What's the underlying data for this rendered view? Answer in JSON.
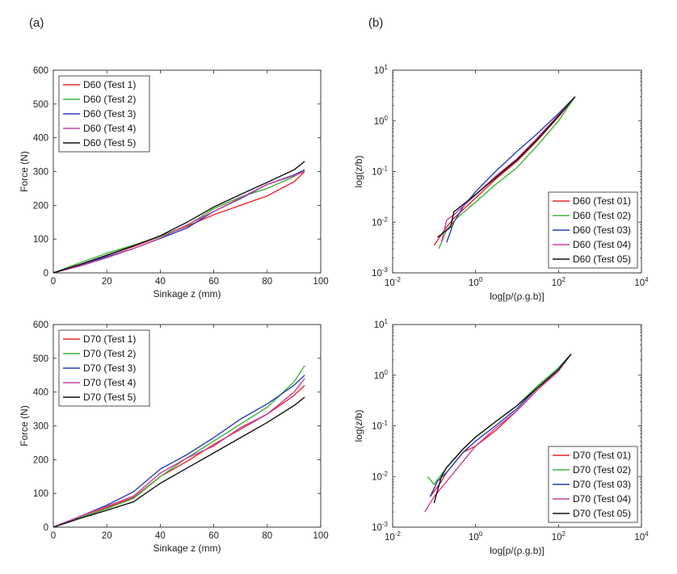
{
  "panels": {
    "a": "(a)",
    "b": "(b)"
  },
  "chart_data": [
    {
      "type": "line",
      "xlabel": "Sinkage z (mm)",
      "ylabel": "Force (N)",
      "xlim": [
        0,
        100
      ],
      "ylim": [
        0,
        600
      ],
      "xticks": [
        0,
        20,
        40,
        60,
        80,
        100
      ],
      "yticks": [
        0,
        100,
        200,
        300,
        400,
        500,
        600
      ],
      "legend_position": "top-left",
      "series": [
        {
          "name": "D60 (Test 1)",
          "color": "#e8262b",
          "x": [
            0,
            10,
            20,
            30,
            40,
            50,
            60,
            70,
            80,
            90,
            94
          ],
          "y": [
            0,
            25,
            52,
            78,
            108,
            138,
            172,
            200,
            228,
            270,
            300
          ]
        },
        {
          "name": "D60 (Test 2)",
          "color": "#3db53a",
          "x": [
            0,
            10,
            20,
            30,
            40,
            50,
            60,
            70,
            80,
            90,
            94
          ],
          "y": [
            0,
            30,
            58,
            82,
            108,
            140,
            190,
            225,
            250,
            285,
            305
          ]
        },
        {
          "name": "D60 (Test 3)",
          "color": "#2b3cb6",
          "x": [
            0,
            10,
            20,
            30,
            40,
            50,
            60,
            70,
            80,
            90,
            94
          ],
          "y": [
            0,
            22,
            48,
            72,
            102,
            133,
            182,
            220,
            262,
            290,
            305
          ]
        },
        {
          "name": "D60 (Test 4)",
          "color": "#c93f9d",
          "x": [
            0,
            10,
            20,
            30,
            40,
            50,
            60,
            70,
            80,
            90,
            94
          ],
          "y": [
            0,
            20,
            45,
            72,
            103,
            142,
            182,
            222,
            262,
            288,
            300
          ]
        },
        {
          "name": "D60 (Test 5)",
          "color": "#111111",
          "x": [
            0,
            10,
            20,
            30,
            40,
            50,
            60,
            70,
            80,
            90,
            94
          ],
          "y": [
            0,
            25,
            52,
            80,
            110,
            150,
            195,
            232,
            268,
            305,
            330
          ]
        }
      ]
    },
    {
      "type": "line",
      "log_x": true,
      "log_y": true,
      "xlabel": "log[p/(ρ.g.b)]",
      "ylabel": "log(z/b)",
      "xlim": [
        0.01,
        10000
      ],
      "ylim": [
        0.001,
        10
      ],
      "x_tick_exponents": [
        -2,
        0,
        2,
        4
      ],
      "y_tick_exponents": [
        -3,
        -2,
        -1,
        0,
        1
      ],
      "legend_position": "bottom-right",
      "series": [
        {
          "name": "D60 (Test 01)",
          "color": "#e8262b",
          "x": [
            0.1,
            0.2,
            0.3,
            1,
            3,
            10,
            30,
            100,
            250
          ],
          "y": [
            0.0035,
            0.008,
            0.012,
            0.03,
            0.07,
            0.16,
            0.4,
            1.2,
            3.0
          ]
        },
        {
          "name": "D60 (Test 02)",
          "color": "#3db53a",
          "x": [
            0.13,
            0.2,
            0.35,
            1,
            3,
            10,
            30,
            100,
            250
          ],
          "y": [
            0.003,
            0.007,
            0.012,
            0.025,
            0.055,
            0.12,
            0.32,
            1.0,
            3.0
          ]
        },
        {
          "name": "D60 (Test 03)",
          "color": "#2b3cb6",
          "x": [
            0.2,
            0.3,
            0.5,
            1,
            3,
            10,
            30,
            100,
            250
          ],
          "y": [
            0.004,
            0.01,
            0.02,
            0.04,
            0.1,
            0.25,
            0.55,
            1.4,
            3.0
          ]
        },
        {
          "name": "D60 (Test 04)",
          "color": "#c93f9d",
          "x": [
            0.15,
            0.2,
            0.3,
            1,
            3,
            10,
            30,
            100,
            250
          ],
          "y": [
            0.004,
            0.011,
            0.014,
            0.035,
            0.08,
            0.18,
            0.45,
            1.3,
            3.0
          ]
        },
        {
          "name": "D60 (Test 05)",
          "color": "#111111",
          "x": [
            0.12,
            0.25,
            0.3,
            1,
            3,
            10,
            30,
            100,
            250
          ],
          "y": [
            0.005,
            0.008,
            0.016,
            0.035,
            0.075,
            0.17,
            0.42,
            1.25,
            3.0
          ]
        }
      ]
    },
    {
      "type": "line",
      "xlabel": "Sinkage z (mm)",
      "ylabel": "Force (N)",
      "xlim": [
        0,
        100
      ],
      "ylim": [
        0,
        600
      ],
      "xticks": [
        0,
        20,
        40,
        60,
        80,
        100
      ],
      "yticks": [
        0,
        100,
        200,
        300,
        400,
        500,
        600
      ],
      "legend_position": "top-left",
      "series": [
        {
          "name": "D70 (Test 1)",
          "color": "#e8262b",
          "x": [
            0,
            10,
            20,
            30,
            40,
            50,
            60,
            70,
            80,
            90,
            94
          ],
          "y": [
            0,
            28,
            58,
            88,
            150,
            195,
            245,
            290,
            335,
            390,
            420
          ]
        },
        {
          "name": "D70 (Test 2)",
          "color": "#3db53a",
          "x": [
            0,
            10,
            20,
            30,
            40,
            50,
            60,
            70,
            80,
            90,
            94
          ],
          "y": [
            0,
            28,
            55,
            85,
            150,
            205,
            255,
            305,
            355,
            430,
            478
          ]
        },
        {
          "name": "D70 (Test 3)",
          "color": "#2b3cb6",
          "x": [
            0,
            10,
            20,
            30,
            40,
            50,
            60,
            70,
            80,
            90,
            94
          ],
          "y": [
            0,
            32,
            65,
            105,
            172,
            215,
            265,
            320,
            365,
            420,
            450
          ]
        },
        {
          "name": "D70 (Test 4)",
          "color": "#c93f9d",
          "x": [
            0,
            10,
            20,
            30,
            40,
            50,
            60,
            70,
            80,
            90,
            94
          ],
          "y": [
            0,
            32,
            62,
            92,
            160,
            205,
            240,
            295,
            335,
            400,
            440
          ]
        },
        {
          "name": "D70 (Test 5)",
          "color": "#111111",
          "x": [
            0,
            10,
            20,
            30,
            40,
            50,
            60,
            70,
            80,
            90,
            94
          ],
          "y": [
            0,
            26,
            50,
            75,
            130,
            175,
            220,
            265,
            310,
            360,
            385
          ]
        }
      ]
    },
    {
      "type": "line",
      "log_x": true,
      "log_y": true,
      "xlabel": "log[p/(ρ.g.b)]",
      "ylabel": "log(z/b)",
      "xlim": [
        0.01,
        10000
      ],
      "ylim": [
        0.001,
        10
      ],
      "x_tick_exponents": [
        -2,
        0,
        2,
        4
      ],
      "y_tick_exponents": [
        -3,
        -2,
        -1,
        0,
        1
      ],
      "legend_position": "bottom-right",
      "series": [
        {
          "name": "D70 (Test 01)",
          "color": "#e8262b",
          "x": [
            0.08,
            0.15,
            0.2,
            0.5,
            1,
            3,
            10,
            30,
            100,
            200
          ],
          "y": [
            0.004,
            0.008,
            0.012,
            0.03,
            0.04,
            0.08,
            0.2,
            0.5,
            1.3,
            2.6
          ]
        },
        {
          "name": "D70 (Test 02)",
          "color": "#3db53a",
          "x": [
            0.07,
            0.1,
            0.2,
            0.5,
            1,
            3,
            10,
            30,
            100,
            200
          ],
          "y": [
            0.01,
            0.007,
            0.015,
            0.035,
            0.06,
            0.12,
            0.25,
            0.6,
            1.4,
            2.6
          ]
        },
        {
          "name": "D70 (Test 03)",
          "color": "#2b3cb6",
          "x": [
            0.08,
            0.12,
            0.2,
            0.5,
            1,
            3,
            10,
            30,
            100,
            200
          ],
          "y": [
            0.004,
            0.008,
            0.012,
            0.03,
            0.05,
            0.1,
            0.22,
            0.55,
            1.3,
            2.6
          ]
        },
        {
          "name": "D70 (Test 04)",
          "color": "#c93f9d",
          "x": [
            0.06,
            0.1,
            0.2,
            0.5,
            1,
            3,
            10,
            30,
            100,
            200
          ],
          "y": [
            0.002,
            0.004,
            0.008,
            0.02,
            0.04,
            0.09,
            0.2,
            0.5,
            1.2,
            2.6
          ]
        },
        {
          "name": "D70 (Test 05)",
          "color": "#111111",
          "x": [
            0.1,
            0.15,
            0.2,
            0.5,
            1,
            3,
            10,
            30,
            100,
            200
          ],
          "y": [
            0.003,
            0.01,
            0.015,
            0.035,
            0.06,
            0.12,
            0.25,
            0.55,
            1.3,
            2.6
          ]
        }
      ]
    }
  ]
}
